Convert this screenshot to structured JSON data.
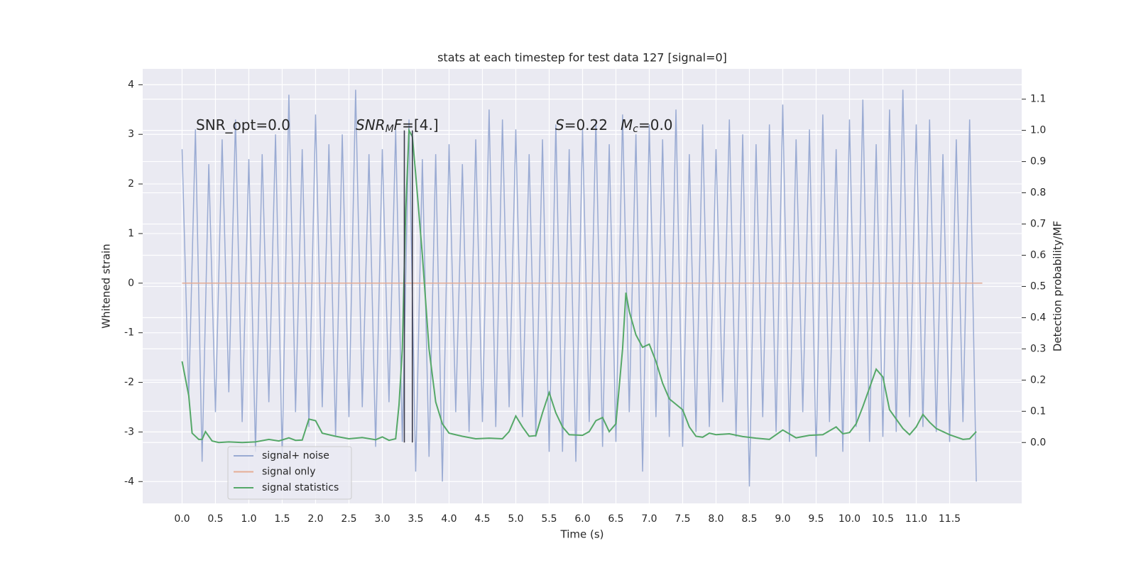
{
  "chart_data": {
    "type": "line",
    "title": "stats at each timestep for test data 127 [signal=0]",
    "xlabel": "Time (s)",
    "ylabel": "Whitened strain",
    "y2label": "Detection probability/MF",
    "annotations": [
      [
        "SNR_opt=0.0"
      ],
      [
        "SNR",
        "M",
        "F",
        "=[4.]"
      ],
      [
        "S",
        "=0.22",
        "M",
        "c",
        "=0.0"
      ]
    ],
    "xlim": [
      -0.59,
      12.58
    ],
    "ylim": [
      -4.44,
      4.32
    ],
    "y2lim": [
      -0.195,
      1.197
    ],
    "xticks": [
      {
        "value": 0,
        "label": "0.0"
      },
      0.5,
      {
        "value": 1,
        "label": "1.0"
      },
      1.5,
      {
        "value": 2,
        "label": "2.0"
      },
      2.5,
      {
        "value": 3,
        "label": "3.0"
      },
      3.5,
      {
        "value": 4,
        "label": "4.0"
      },
      4.5,
      {
        "value": 5,
        "label": "5.0"
      },
      5.5,
      {
        "value": 6,
        "label": "6.0"
      },
      6.5,
      {
        "value": 7,
        "label": "7.0"
      },
      7.5,
      {
        "value": 8,
        "label": "8.0"
      },
      8.5,
      {
        "value": 9,
        "label": "9.0"
      },
      9.5,
      {
        "value": 10,
        "label": "10.0"
      },
      10.5,
      {
        "value": 11,
        "label": "11.0"
      },
      11.5
    ],
    "yticks": [
      4,
      3,
      2,
      1,
      0,
      -1,
      -2,
      -3,
      -4
    ],
    "y2ticks": [
      {
        "value": 0,
        "label": "0.0"
      },
      0.1,
      0.2,
      0.3,
      0.4,
      0.5,
      0.6,
      0.7,
      0.8,
      0.9,
      {
        "value": 1,
        "label": "1.0"
      },
      1.1
    ],
    "grid": true,
    "legend": "lower left",
    "series": [
      {
        "name": "signal+ noise",
        "color": "#9aabd3",
        "x": [
          0,
          0.1,
          0.2,
          0.3,
          0.4,
          0.5,
          0.6,
          0.7,
          0.8,
          0.9,
          1,
          1.1,
          1.2,
          1.3,
          1.4,
          1.5,
          1.6,
          1.7,
          1.8,
          1.9,
          2,
          2.1,
          2.2,
          2.3,
          2.4,
          2.5,
          2.6,
          2.7,
          2.8,
          2.9,
          3,
          3.1,
          3.2,
          3.3,
          3.4,
          3.5,
          3.6,
          3.7,
          3.8,
          3.9,
          4,
          4.1,
          4.2,
          4.3,
          4.4,
          4.5,
          4.6,
          4.7,
          4.8,
          4.9,
          5,
          5.1,
          5.2,
          5.3,
          5.4,
          5.5,
          5.6,
          5.7,
          5.8,
          5.9,
          6,
          6.1,
          6.2,
          6.3,
          6.4,
          6.5,
          6.6,
          6.7,
          6.8,
          6.9,
          7,
          7.1,
          7.2,
          7.3,
          7.4,
          7.5,
          7.6,
          7.7,
          7.8,
          7.9,
          8,
          8.1,
          8.2,
          8.3,
          8.4,
          8.5,
          8.6,
          8.7,
          8.8,
          8.9,
          9,
          9.1,
          9.2,
          9.3,
          9.4,
          9.5,
          9.6,
          9.7,
          9.8,
          9.9,
          10,
          10.1,
          10.2,
          10.3,
          10.4,
          10.5,
          10.6,
          10.7,
          10.8,
          10.9,
          11,
          11.1,
          11.2,
          11.3,
          11.4,
          11.5,
          11.6,
          11.7,
          11.8,
          11.9
        ],
        "values": [
          2.7,
          -2.3,
          3.1,
          -3.6,
          2.4,
          -2.6,
          2.9,
          -2.2,
          3.3,
          -2.8,
          2.5,
          -3.4,
          2.6,
          -2.4,
          3.0,
          -3.5,
          3.8,
          -2.6,
          2.7,
          -2.9,
          3.4,
          -2.5,
          2.8,
          -3.1,
          3.0,
          -2.7,
          3.9,
          -2.5,
          2.6,
          -3.3,
          2.7,
          -2.4,
          3.1,
          -3.2,
          3.3,
          -3.8,
          2.5,
          -3.5,
          2.6,
          -4.0,
          2.8,
          -2.6,
          2.4,
          -3.0,
          2.9,
          -2.8,
          3.5,
          -2.9,
          3.3,
          -2.5,
          3.1,
          -2.7,
          2.6,
          -3.1,
          2.9,
          -3.4,
          3.2,
          -3.4,
          2.7,
          -3.6,
          3.1,
          -2.8,
          3.3,
          -3.3,
          2.8,
          -3.2,
          3.4,
          -2.6,
          3.0,
          -3.8,
          3.2,
          -2.7,
          2.9,
          -3.1,
          3.5,
          -3.3,
          2.6,
          -3.0,
          3.2,
          -2.9,
          2.7,
          -2.4,
          3.3,
          -3.1,
          3.0,
          -4.1,
          2.8,
          -2.7,
          3.2,
          -3.0,
          3.6,
          -3.2,
          2.9,
          -2.6,
          3.1,
          -3.5,
          3.4,
          -2.8,
          2.7,
          -3.4,
          3.3,
          -2.9,
          3.7,
          -3.2,
          2.8,
          -3.1,
          3.5,
          -3.0,
          3.9,
          -2.7,
          3.2,
          -2.9,
          3.3,
          -3.0,
          2.6,
          -3.2,
          2.9,
          -2.8,
          3.3,
          -4.0
        ]
      },
      {
        "name": "signal only",
        "color": "#e5ad95",
        "x": [
          0,
          11.99
        ],
        "values": [
          0,
          0
        ]
      },
      {
        "name": "signal statistics",
        "color": "#55a868",
        "axis": "y2",
        "x": [
          0,
          0.1,
          0.15,
          0.25,
          0.3,
          0.35,
          0.45,
          0.55,
          0.7,
          0.9,
          1.1,
          1.3,
          1.45,
          1.6,
          1.7,
          1.8,
          1.9,
          2.0,
          2.1,
          2.3,
          2.5,
          2.7,
          2.9,
          3.0,
          3.1,
          3.2,
          3.25,
          3.3,
          3.35,
          3.4,
          3.45,
          3.5,
          3.6,
          3.7,
          3.8,
          3.9,
          4.0,
          4.2,
          4.4,
          4.6,
          4.8,
          4.9,
          5.0,
          5.1,
          5.2,
          5.3,
          5.4,
          5.5,
          5.6,
          5.7,
          5.8,
          6.0,
          6.1,
          6.2,
          6.3,
          6.4,
          6.5,
          6.6,
          6.65,
          6.7,
          6.8,
          6.9,
          7.0,
          7.1,
          7.2,
          7.3,
          7.5,
          7.6,
          7.7,
          7.8,
          7.9,
          8.0,
          8.2,
          8.4,
          8.6,
          8.8,
          9.0,
          9.2,
          9.4,
          9.6,
          9.8,
          9.9,
          10.0,
          10.1,
          10.2,
          10.4,
          10.5,
          10.6,
          10.8,
          10.9,
          11.0,
          11.1,
          11.2,
          11.3,
          11.5,
          11.7,
          11.8,
          11.9
        ],
        "values": [
          0.26,
          0.15,
          0.03,
          0.01,
          0.01,
          0.035,
          0.005,
          0.0,
          0.002,
          0.0,
          0.002,
          0.01,
          0.005,
          0.015,
          0.007,
          0.008,
          0.075,
          0.07,
          0.03,
          0.02,
          0.012,
          0.016,
          0.009,
          0.018,
          0.007,
          0.012,
          0.12,
          0.3,
          0.74,
          1.0,
          0.98,
          0.86,
          0.6,
          0.3,
          0.13,
          0.06,
          0.03,
          0.02,
          0.012,
          0.014,
          0.012,
          0.035,
          0.085,
          0.05,
          0.02,
          0.022,
          0.095,
          0.16,
          0.095,
          0.05,
          0.025,
          0.023,
          0.035,
          0.07,
          0.08,
          0.035,
          0.06,
          0.3,
          0.48,
          0.42,
          0.345,
          0.305,
          0.315,
          0.26,
          0.19,
          0.14,
          0.105,
          0.05,
          0.02,
          0.017,
          0.03,
          0.025,
          0.028,
          0.019,
          0.014,
          0.01,
          0.04,
          0.015,
          0.023,
          0.025,
          0.05,
          0.028,
          0.032,
          0.06,
          0.115,
          0.235,
          0.21,
          0.105,
          0.045,
          0.025,
          0.05,
          0.09,
          0.065,
          0.045,
          0.025,
          0.01,
          0.012,
          0.035
        ]
      }
    ],
    "vlines": {
      "x": [
        3.33,
        3.45
      ],
      "ymin": 0,
      "ymax": 1,
      "axis": "y2",
      "color": "#3a3a4a"
    }
  }
}
